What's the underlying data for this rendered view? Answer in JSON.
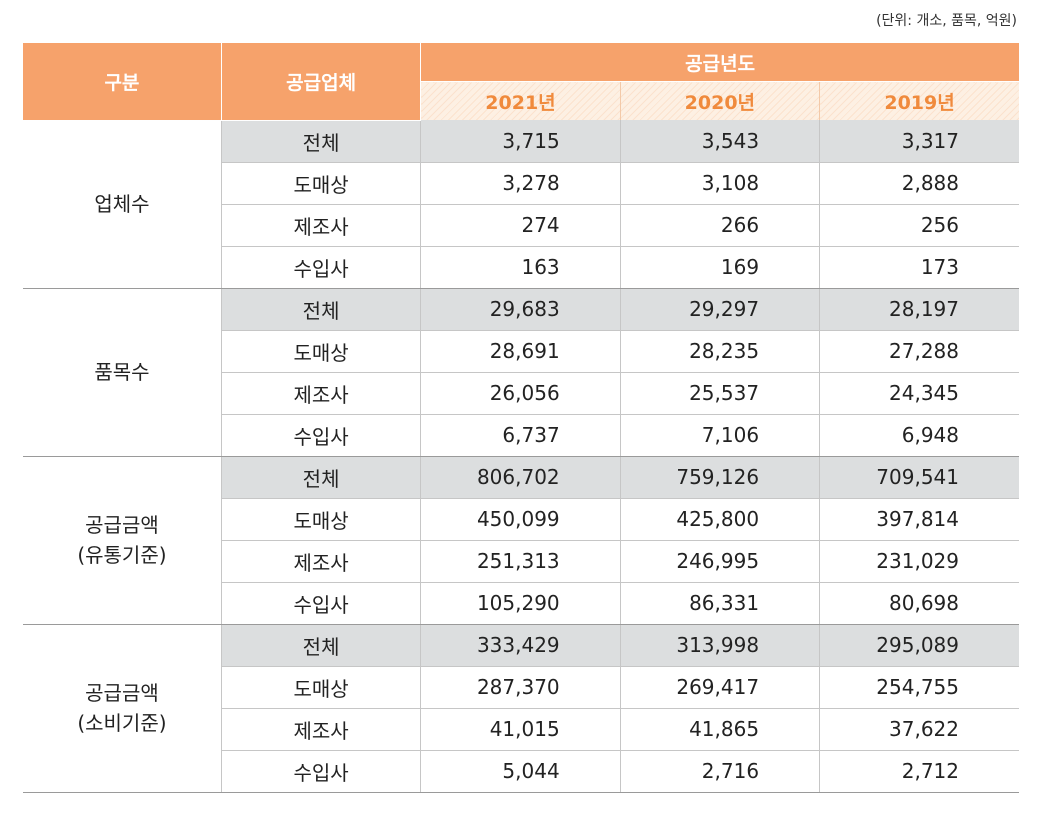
{
  "unit_note": "(단위: 개소, 품목, 억원)",
  "header": {
    "category": "구분",
    "supplier": "공급업체",
    "years_group": "공급년도",
    "years": [
      "2021년",
      "2020년",
      "2019년"
    ]
  },
  "groups": [
    {
      "label_lines": [
        "업체수"
      ],
      "rows": [
        {
          "type": "전체",
          "values": [
            "3,715",
            "3,543",
            "3,317"
          ]
        },
        {
          "type": "도매상",
          "values": [
            "3,278",
            "3,108",
            "2,888"
          ]
        },
        {
          "type": "제조사",
          "values": [
            "274",
            "266",
            "256"
          ]
        },
        {
          "type": "수입사",
          "values": [
            "163",
            "169",
            "173"
          ]
        }
      ]
    },
    {
      "label_lines": [
        "품목수"
      ],
      "rows": [
        {
          "type": "전체",
          "values": [
            "29,683",
            "29,297",
            "28,197"
          ]
        },
        {
          "type": "도매상",
          "values": [
            "28,691",
            "28,235",
            "27,288"
          ]
        },
        {
          "type": "제조사",
          "values": [
            "26,056",
            "25,537",
            "24,345"
          ]
        },
        {
          "type": "수입사",
          "values": [
            "6,737",
            "7,106",
            "6,948"
          ]
        }
      ]
    },
    {
      "label_lines": [
        "공급금액",
        "(유통기준)"
      ],
      "rows": [
        {
          "type": "전체",
          "values": [
            "806,702",
            "759,126",
            "709,541"
          ]
        },
        {
          "type": "도매상",
          "values": [
            "450,099",
            "425,800",
            "397,814"
          ]
        },
        {
          "type": "제조사",
          "values": [
            "251,313",
            "246,995",
            "231,029"
          ]
        },
        {
          "type": "수입사",
          "values": [
            "105,290",
            "86,331",
            "80,698"
          ]
        }
      ]
    },
    {
      "label_lines": [
        "공급금액",
        "(소비기준)"
      ],
      "rows": [
        {
          "type": "전체",
          "values": [
            "333,429",
            "313,998",
            "295,089"
          ]
        },
        {
          "type": "도매상",
          "values": [
            "287,370",
            "269,417",
            "254,755"
          ]
        },
        {
          "type": "제조사",
          "values": [
            "41,015",
            "41,865",
            "37,622"
          ]
        },
        {
          "type": "수입사",
          "values": [
            "5,044",
            "2,716",
            "2,712"
          ]
        }
      ]
    }
  ],
  "colors": {
    "header_orange": "#f6a26b",
    "year_text": "#f08a3c",
    "total_row_gray": "#dcdedf"
  }
}
